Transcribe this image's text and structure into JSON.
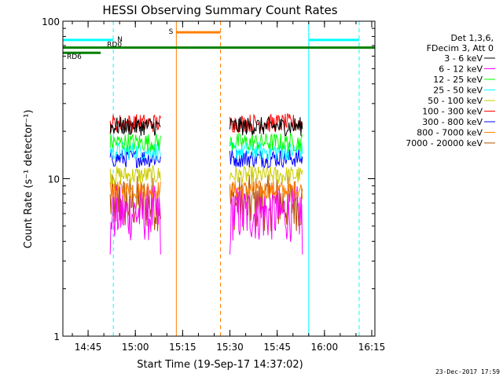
{
  "chart_data": {
    "type": "line",
    "title": "HESSI Observing Summary Count Rates",
    "xlabel": "Start Time (19-Sep-17 14:37:02)",
    "ylabel": "Count Rate (s⁻¹ detector⁻¹)",
    "yscale": "log",
    "ylim": [
      1,
      100
    ],
    "xlim_minutes_after_1437": [
      0,
      99
    ],
    "x_ticks": [
      "14:45",
      "15:00",
      "15:15",
      "15:30",
      "15:45",
      "16:00",
      "16:15"
    ],
    "y_ticks": [
      "1",
      "10",
      "100"
    ],
    "legend_header": [
      "Det 1,3,6,",
      "FDecim 3, Att 0"
    ],
    "legend_position": "top-right",
    "grid": false,
    "series": [
      {
        "name": "3 - 6 keV",
        "color": "#000000",
        "level": 21.5
      },
      {
        "name": "6 - 12 keV",
        "color": "#ff00ff",
        "level": 6.0
      },
      {
        "name": "12 - 25 keV",
        "color": "#00ff00",
        "level": 17.0
      },
      {
        "name": "25 - 50 keV",
        "color": "#00ffff",
        "level": 15.0
      },
      {
        "name": "50 - 100 keV",
        "color": "#cccc00",
        "level": 10.5
      },
      {
        "name": "100 - 300 keV",
        "color": "#ff0000",
        "level": 22.5
      },
      {
        "name": "300 - 800 keV",
        "color": "#0000ff",
        "level": 13.5
      },
      {
        "name": "800 - 7000 keV",
        "color": "#ff8000",
        "level": 8.5
      },
      {
        "name": "7000 - 20000 keV",
        "color": "#b05000",
        "level": 7.0
      }
    ],
    "segments": [
      {
        "start": "14:52",
        "end": "15:08"
      },
      {
        "start": "15:30",
        "end": "15:53"
      }
    ],
    "flag_bars": [
      {
        "label": "N",
        "color": "#00ffff",
        "start": "14:37",
        "end": "14:53",
        "level": 76
      },
      {
        "label": "",
        "color": "#00ffff",
        "start": "15:55",
        "end": "16:11",
        "level": 76
      },
      {
        "label": "S",
        "color": "#ff8000",
        "start": "15:13",
        "end": "15:27",
        "level": 85
      },
      {
        "label": "RD0",
        "color": "#008000",
        "start": "14:37",
        "end": "16:16",
        "level": 68
      },
      {
        "label": "RD6",
        "color": "#008000",
        "start": "14:37",
        "end": "14:49",
        "level": 63
      }
    ],
    "vertical_lines": [
      {
        "time": "14:37",
        "color": "#00ffff",
        "style": "solid"
      },
      {
        "time": "14:53",
        "color": "#00ffff",
        "style": "dashed"
      },
      {
        "time": "15:13",
        "color": "#ff8000",
        "style": "solid"
      },
      {
        "time": "15:27",
        "color": "#ff8000",
        "style": "dashed"
      },
      {
        "time": "15:55",
        "color": "#00ffff",
        "style": "solid"
      },
      {
        "time": "16:11",
        "color": "#00ffff",
        "style": "dashed"
      }
    ]
  },
  "footer_timestamp": "23-Dec-2017 17:59"
}
